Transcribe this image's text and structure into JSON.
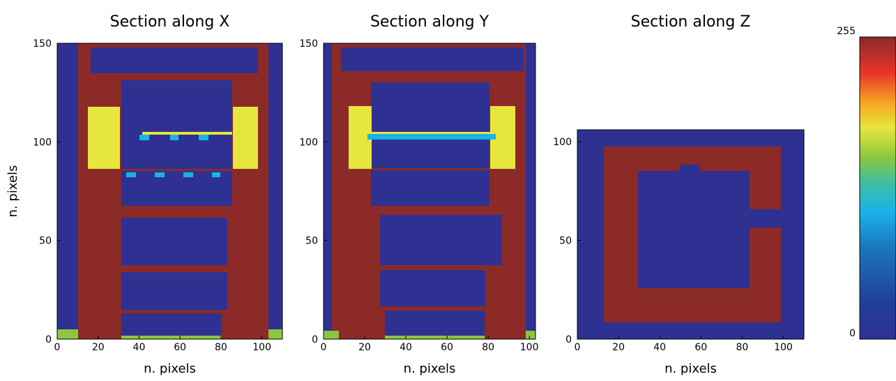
{
  "chart_data": [
    {
      "type": "image",
      "title": "Section along X",
      "xlabel": "n. pixels",
      "ylabel": "n. pixels",
      "xlim": [
        0,
        110
      ],
      "ylim": [
        0,
        150
      ],
      "xticks": [
        0,
        20,
        40,
        60,
        80,
        100
      ],
      "yticks": [
        0,
        50,
        100,
        150
      ]
    },
    {
      "type": "image",
      "title": "Section along Y",
      "xlabel": "n. pixels",
      "xlim": [
        0,
        103
      ],
      "ylim": [
        0,
        150
      ],
      "xticks": [
        0,
        20,
        40,
        60,
        80,
        100
      ],
      "yticks": [
        0,
        50,
        100,
        150
      ]
    },
    {
      "type": "image",
      "title": "Section along Z",
      "xlabel": "n. pixels",
      "xlim": [
        0,
        110
      ],
      "ylim": [
        0,
        106
      ],
      "xticks": [
        0,
        20,
        40,
        60,
        80,
        100
      ],
      "yticks": [
        0,
        50,
        100
      ]
    },
    {
      "type": "colorbar",
      "ylim": [
        0,
        255
      ],
      "yticks": [
        0,
        255
      ]
    }
  ]
}
